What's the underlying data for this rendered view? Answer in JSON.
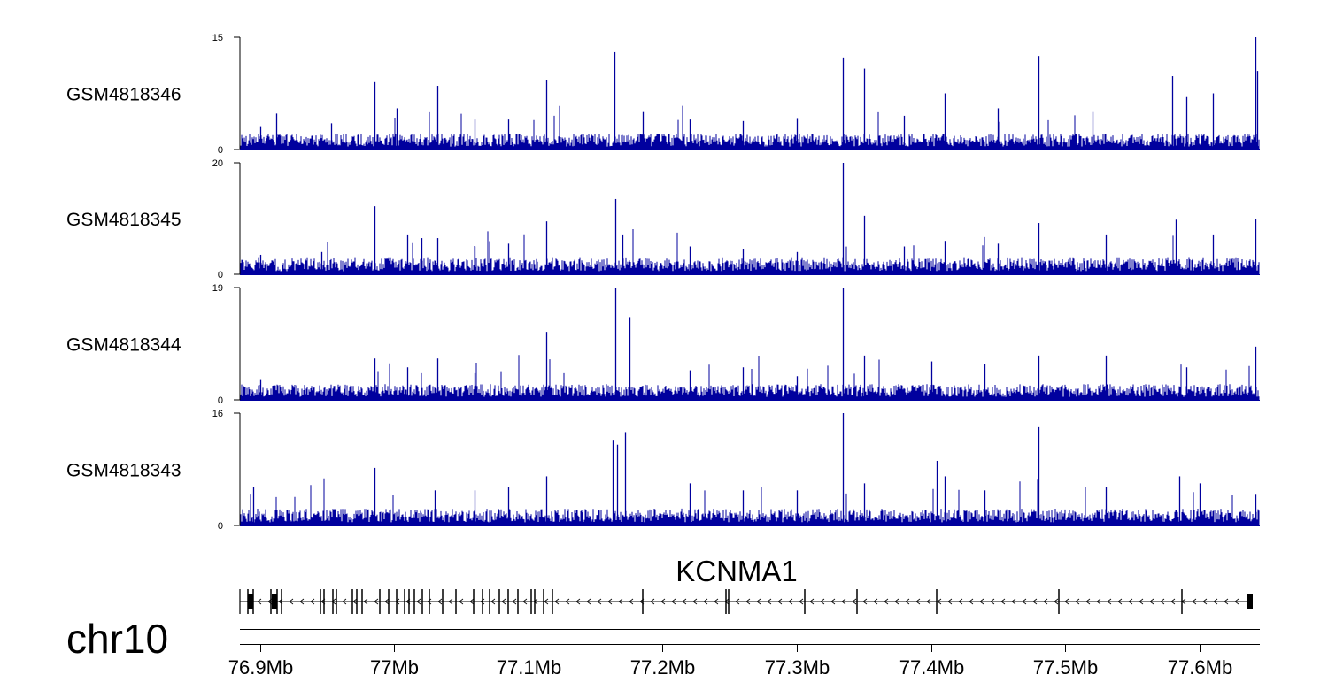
{
  "chart_data": {
    "type": "genome-track",
    "chromosome": "chr10",
    "x_range_mb": [
      76.885,
      77.645
    ],
    "gene": {
      "name": "KCNMA1",
      "strand": "-",
      "exon_positions_mb": [
        76.891,
        76.893,
        76.895,
        76.908,
        76.911,
        76.913,
        76.916,
        76.945,
        76.948,
        76.954,
        76.957,
        76.969,
        76.972,
        76.976,
        76.989,
        76.996,
        77.002,
        77.008,
        77.011,
        77.015,
        77.021,
        77.026,
        77.036,
        77.046,
        77.059,
        77.066,
        77.071,
        77.078,
        77.085,
        77.092,
        77.102,
        77.105,
        77.111,
        77.118,
        77.185,
        77.247,
        77.249,
        77.306,
        77.345,
        77.404,
        77.495,
        77.587,
        77.638
      ]
    },
    "tracks": [
      {
        "name": "GSM4818346",
        "ymax": 15,
        "ymin": 0,
        "baseline": 1.6,
        "peaks": [
          [
            76.9,
            3.0
          ],
          [
            76.912,
            4.8
          ],
          [
            76.953,
            3.5
          ],
          [
            76.985,
            9.0
          ],
          [
            77.002,
            5.5
          ],
          [
            77.032,
            8.5
          ],
          [
            77.06,
            4.0
          ],
          [
            77.085,
            4.0
          ],
          [
            77.113,
            9.3
          ],
          [
            77.164,
            13.0
          ],
          [
            77.185,
            5.0
          ],
          [
            77.22,
            4.0
          ],
          [
            77.26,
            3.8
          ],
          [
            77.3,
            4.2
          ],
          [
            77.334,
            12.3
          ],
          [
            77.35,
            10.8
          ],
          [
            77.38,
            4.5
          ],
          [
            77.41,
            7.5
          ],
          [
            77.45,
            5.5
          ],
          [
            77.48,
            12.5
          ],
          [
            77.52,
            5.0
          ],
          [
            77.58,
            9.8
          ],
          [
            77.59,
            7.0
          ],
          [
            77.61,
            7.5
          ],
          [
            77.642,
            15.0
          ],
          [
            77.643,
            10.5
          ]
        ]
      },
      {
        "name": "GSM4818345",
        "ymax": 20,
        "ymin": 0,
        "baseline": 2.2,
        "peaks": [
          [
            76.9,
            3.5
          ],
          [
            76.946,
            4.0
          ],
          [
            76.985,
            12.2
          ],
          [
            77.01,
            7.0
          ],
          [
            77.02,
            6.5
          ],
          [
            77.032,
            6.5
          ],
          [
            77.06,
            5.0
          ],
          [
            77.085,
            5.5
          ],
          [
            77.113,
            9.5
          ],
          [
            77.165,
            13.5
          ],
          [
            77.17,
            7.0
          ],
          [
            77.22,
            5.0
          ],
          [
            77.26,
            4.5
          ],
          [
            77.3,
            4.0
          ],
          [
            77.334,
            20.0
          ],
          [
            77.35,
            10.5
          ],
          [
            77.38,
            5.0
          ],
          [
            77.41,
            6.0
          ],
          [
            77.45,
            5.5
          ],
          [
            77.48,
            9.2
          ],
          [
            77.53,
            7.0
          ],
          [
            77.582,
            9.8
          ],
          [
            77.61,
            7.0
          ],
          [
            77.642,
            10.0
          ]
        ]
      },
      {
        "name": "GSM4818344",
        "ymax": 19,
        "ymin": 0,
        "baseline": 2.0,
        "peaks": [
          [
            76.9,
            3.5
          ],
          [
            76.985,
            7.0
          ],
          [
            77.01,
            5.5
          ],
          [
            77.032,
            7.0
          ],
          [
            77.06,
            4.5
          ],
          [
            77.113,
            11.5
          ],
          [
            77.165,
            19.0
          ],
          [
            77.175,
            14.0
          ],
          [
            77.22,
            5.0
          ],
          [
            77.26,
            5.5
          ],
          [
            77.3,
            4.0
          ],
          [
            77.334,
            19.0
          ],
          [
            77.35,
            7.5
          ],
          [
            77.4,
            6.5
          ],
          [
            77.44,
            6.0
          ],
          [
            77.48,
            7.5
          ],
          [
            77.53,
            7.5
          ],
          [
            77.59,
            5.5
          ],
          [
            77.642,
            9.0
          ]
        ]
      },
      {
        "name": "GSM4818343",
        "ymax": 16,
        "ymin": 0,
        "baseline": 1.8,
        "peaks": [
          [
            76.895,
            5.5
          ],
          [
            76.985,
            8.2
          ],
          [
            77.03,
            5.0
          ],
          [
            77.06,
            5.0
          ],
          [
            77.085,
            5.5
          ],
          [
            77.113,
            7.0
          ],
          [
            77.163,
            12.2
          ],
          [
            77.166,
            11.5
          ],
          [
            77.172,
            13.3
          ],
          [
            77.22,
            6.0
          ],
          [
            77.26,
            5.0
          ],
          [
            77.3,
            5.0
          ],
          [
            77.334,
            16.0
          ],
          [
            77.35,
            6.0
          ],
          [
            77.404,
            9.2
          ],
          [
            77.41,
            7.0
          ],
          [
            77.44,
            5.0
          ],
          [
            77.48,
            14.0
          ],
          [
            77.53,
            5.5
          ],
          [
            77.585,
            7.0
          ],
          [
            77.6,
            6.0
          ],
          [
            77.642,
            4.5
          ]
        ]
      }
    ],
    "x_axis": {
      "ticks_mb": [
        76.9,
        77.0,
        77.1,
        77.2,
        77.3,
        77.4,
        77.5,
        77.6
      ],
      "tick_labels": [
        "76.9Mb",
        "77Mb",
        "77.1Mb",
        "77.2Mb",
        "77.3Mb",
        "77.4Mb",
        "77.5Mb",
        "77.6Mb"
      ]
    },
    "signal_color": "#00009e",
    "axis_color": "#000000"
  }
}
